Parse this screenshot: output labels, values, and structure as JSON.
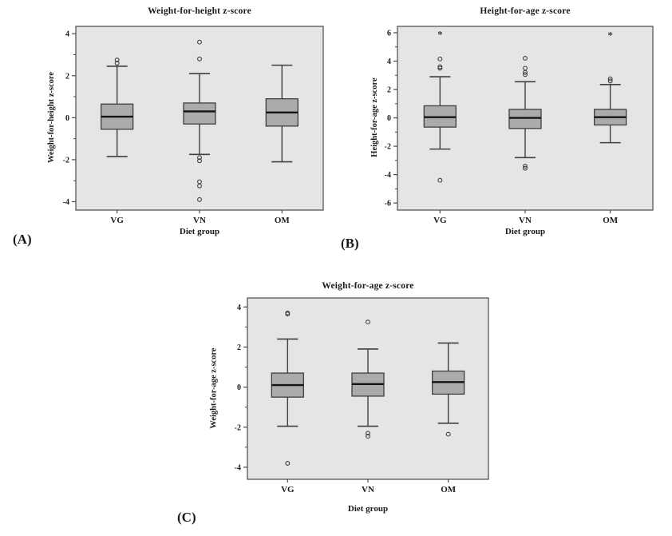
{
  "style": {
    "plot_bg": "#e5e5e5",
    "box_fill": "#ababab",
    "line": "#3f3f3f",
    "median": "#141414",
    "frame": "#4a4a4a",
    "text": "#1a1a1a"
  },
  "chart_data": [
    {
      "type": "boxplot",
      "panel_label": "(A)",
      "title": "Weight-for-height z-score",
      "xlabel": "Diet group",
      "ylabel": "Weight-for-height z-score",
      "categories": [
        "VG",
        "VN",
        "OM"
      ],
      "ylim": [
        -4.4,
        4.35
      ],
      "yticks": [
        4,
        2,
        0,
        -2,
        -4
      ],
      "grid": false,
      "legend": "none",
      "series": [
        {
          "category": "VG",
          "whisker_low": -1.85,
          "q1": -0.55,
          "median": 0.05,
          "q3": 0.65,
          "whisker_high": 2.45,
          "outliers": [
            2.6,
            2.75
          ],
          "extremes": []
        },
        {
          "category": "VN",
          "whisker_low": -1.75,
          "q1": -0.3,
          "median": 0.3,
          "q3": 0.7,
          "whisker_high": 2.1,
          "outliers": [
            3.6,
            2.8,
            -1.9,
            -2.05,
            -3.05,
            -3.25,
            -3.9
          ],
          "extremes": []
        },
        {
          "category": "OM",
          "whisker_low": -2.1,
          "q1": -0.4,
          "median": 0.25,
          "q3": 0.9,
          "whisker_high": 2.5,
          "outliers": [],
          "extremes": []
        }
      ]
    },
    {
      "type": "boxplot",
      "panel_label": "(B)",
      "title": "Height-for-age z-score",
      "xlabel": "Diet group",
      "ylabel": "Height-for-age z-score",
      "categories": [
        "VG",
        "VN",
        "OM"
      ],
      "ylim": [
        -6.5,
        6.45
      ],
      "yticks": [
        6,
        4,
        2,
        0,
        -2,
        -4,
        -6
      ],
      "grid": false,
      "legend": "none",
      "series": [
        {
          "category": "VG",
          "whisker_low": -2.2,
          "q1": -0.65,
          "median": 0.05,
          "q3": 0.85,
          "whisker_high": 2.9,
          "outliers": [
            4.15,
            3.6,
            3.5,
            -4.4
          ],
          "extremes": [
            5.95
          ]
        },
        {
          "category": "VN",
          "whisker_low": -2.8,
          "q1": -0.75,
          "median": 0.0,
          "q3": 0.6,
          "whisker_high": 2.55,
          "outliers": [
            4.2,
            3.5,
            3.2,
            3.05,
            -3.4,
            -3.55
          ],
          "extremes": []
        },
        {
          "category": "OM",
          "whisker_low": -1.75,
          "q1": -0.5,
          "median": 0.05,
          "q3": 0.6,
          "whisker_high": 2.35,
          "outliers": [
            2.75,
            2.6
          ],
          "extremes": [
            5.9
          ]
        }
      ]
    },
    {
      "type": "boxplot",
      "panel_label": "(C)",
      "title": "Weight-for-age z-score",
      "xlabel": "Diet group",
      "ylabel": "Weight-for-age z-score",
      "categories": [
        "VG",
        "VN",
        "OM"
      ],
      "ylim": [
        -4.6,
        4.45
      ],
      "yticks": [
        4,
        2,
        0,
        -2,
        -4
      ],
      "grid": false,
      "legend": "none",
      "series": [
        {
          "category": "VG",
          "whisker_low": -1.95,
          "q1": -0.5,
          "median": 0.1,
          "q3": 0.7,
          "whisker_high": 2.4,
          "outliers": [
            3.7,
            3.65,
            -3.8
          ],
          "extremes": []
        },
        {
          "category": "VN",
          "whisker_low": -1.95,
          "q1": -0.45,
          "median": 0.15,
          "q3": 0.7,
          "whisker_high": 1.9,
          "outliers": [
            3.25,
            -2.3,
            -2.45
          ],
          "extremes": []
        },
        {
          "category": "OM",
          "whisker_low": -1.8,
          "q1": -0.35,
          "median": 0.25,
          "q3": 0.8,
          "whisker_high": 2.2,
          "outliers": [
            -2.35
          ],
          "extremes": []
        }
      ]
    }
  ]
}
